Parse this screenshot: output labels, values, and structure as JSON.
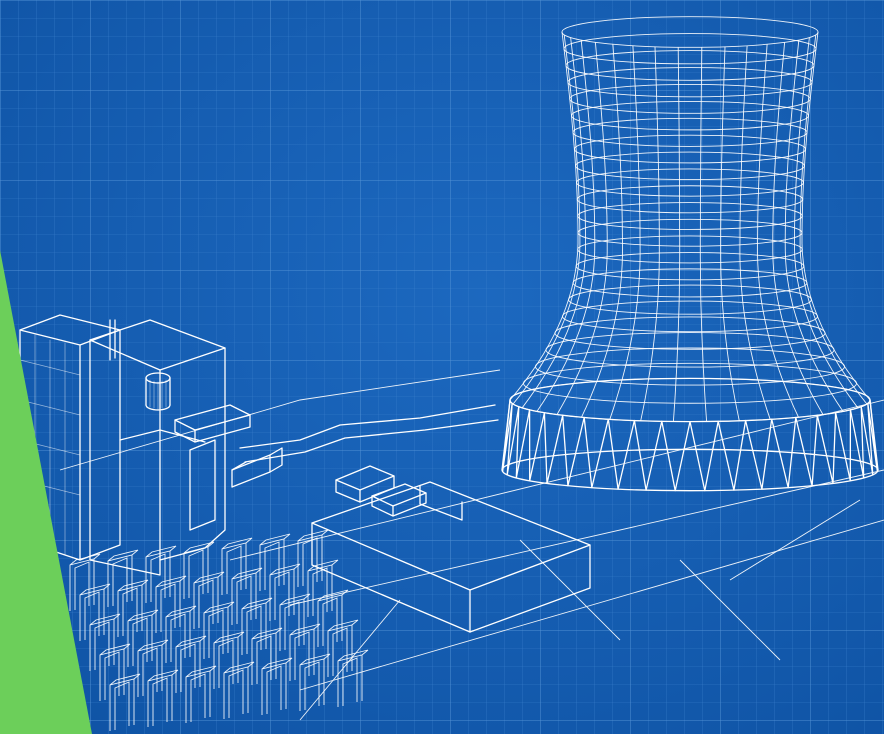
{
  "colors": {
    "background": "#1560b8",
    "grid_minor": "#3a7fcc",
    "grid_major": "#5a98d8",
    "line": "#ffffff",
    "accent_wedge": "#6ccf5a"
  },
  "scene": {
    "subject": "blueprint-wireframe-power-plant",
    "elements": [
      "cooling-tower-icon",
      "reactor-building-icon",
      "transformer-yard-icon",
      "pipe-conduit-icon",
      "flat-block-building-icon",
      "ground-plane-outline-icon",
      "green-accent-wedge"
    ]
  }
}
